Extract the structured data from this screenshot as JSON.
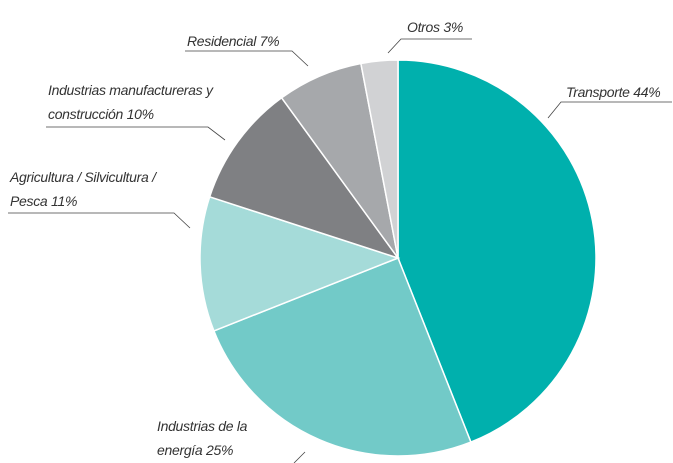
{
  "chart_data": {
    "type": "pie",
    "categories": [
      "Transporte",
      "Industrias de la energía",
      "Agricultura / Silvicultura / Pesca",
      "Industrias manufactureras y construcción",
      "Residencial",
      "Otros"
    ],
    "values": [
      44,
      25,
      11,
      10,
      7,
      3
    ],
    "value_labels": [
      "44%",
      "25%",
      "11%",
      "10%",
      "7%",
      "3%"
    ],
    "colors": [
      "#00b0ad",
      "#72cac8",
      "#a5dbd9",
      "#7f8083",
      "#a6a8ab",
      "#d1d2d4"
    ]
  }
}
